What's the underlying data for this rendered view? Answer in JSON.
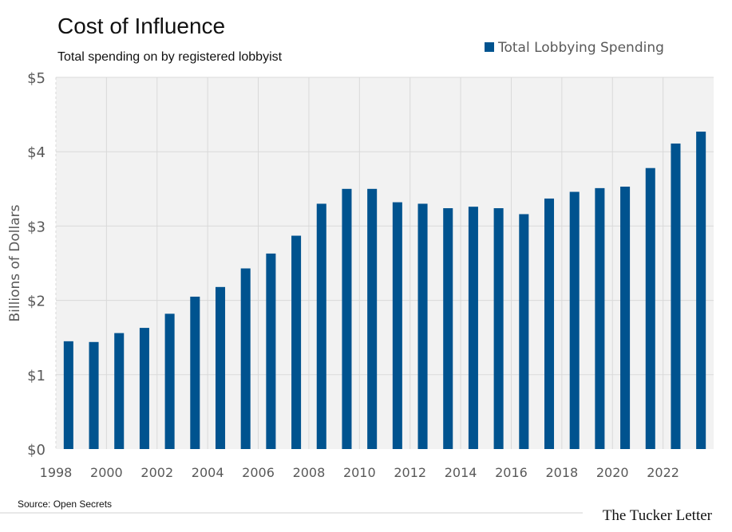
{
  "chart_data": {
    "type": "bar",
    "title": "Cost of Influence",
    "subtitle": "Total spending on by registered lobbyist",
    "ylabel": "Billions of Dollars",
    "ylim": [
      0,
      5
    ],
    "yticks": [
      "$0",
      "$1",
      "$2",
      "$3",
      "$4",
      "$5"
    ],
    "x_tick_labels": [
      "1998",
      "2000",
      "2002",
      "2004",
      "2006",
      "2008",
      "2010",
      "2012",
      "2014",
      "2016",
      "2018",
      "2020",
      "2022"
    ],
    "categories": [
      "1998",
      "1999",
      "2000",
      "2001",
      "2002",
      "2003",
      "2004",
      "2005",
      "2006",
      "2007",
      "2008",
      "2009",
      "2010",
      "2011",
      "2012",
      "2013",
      "2014",
      "2015",
      "2016",
      "2017",
      "2018",
      "2019",
      "2020",
      "2021",
      "2022",
      "2023"
    ],
    "series": [
      {
        "name": "Total Lobbying Spending",
        "values": [
          1.45,
          1.44,
          1.56,
          1.63,
          1.82,
          2.05,
          2.18,
          2.43,
          2.63,
          2.87,
          3.3,
          3.5,
          3.5,
          3.32,
          3.3,
          3.24,
          3.26,
          3.24,
          3.16,
          3.37,
          3.46,
          3.51,
          3.53,
          3.78,
          4.11,
          4.27
        ]
      }
    ],
    "legend": "top-right",
    "grid": true,
    "colors": {
      "bar": "#00538f",
      "plot_bg": "#f2f2f2",
      "grid": "#d9d9d9"
    }
  },
  "footer": {
    "source": "Source: Open Secrets",
    "brand": "The Tucker Letter"
  }
}
